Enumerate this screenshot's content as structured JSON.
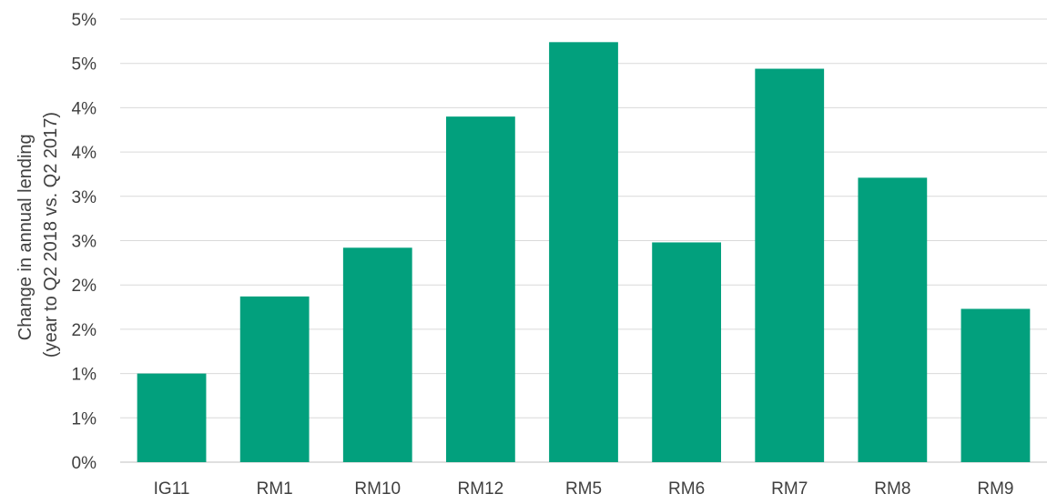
{
  "chart_data": {
    "type": "bar",
    "title": "",
    "xlabel": "",
    "ylabel": "Change in annual lending",
    "ylabel_line2": "(year to Q2 2018 vs. Q2 2017)",
    "categories": [
      "IG11",
      "RM1",
      "RM10",
      "RM12",
      "RM5",
      "RM6",
      "RM7",
      "RM8",
      "RM9"
    ],
    "values": [
      1.0,
      1.87,
      2.42,
      3.9,
      4.74,
      2.48,
      4.44,
      3.21,
      1.73
    ],
    "ylim": [
      0,
      5.0
    ],
    "y_ticks": [
      0,
      0.5,
      1.0,
      1.5,
      2.0,
      2.5,
      3.0,
      3.5,
      4.0,
      4.5,
      5.0
    ],
    "y_tick_labels": [
      "0%",
      "1%",
      "1%",
      "2%",
      "2%",
      "3%",
      "3%",
      "4%",
      "4%",
      "5%",
      "5%"
    ],
    "grid": true,
    "legend": "none",
    "colors": {
      "bar": "#02a07d",
      "grid": "#d9d9d9",
      "text": "#404040"
    }
  }
}
